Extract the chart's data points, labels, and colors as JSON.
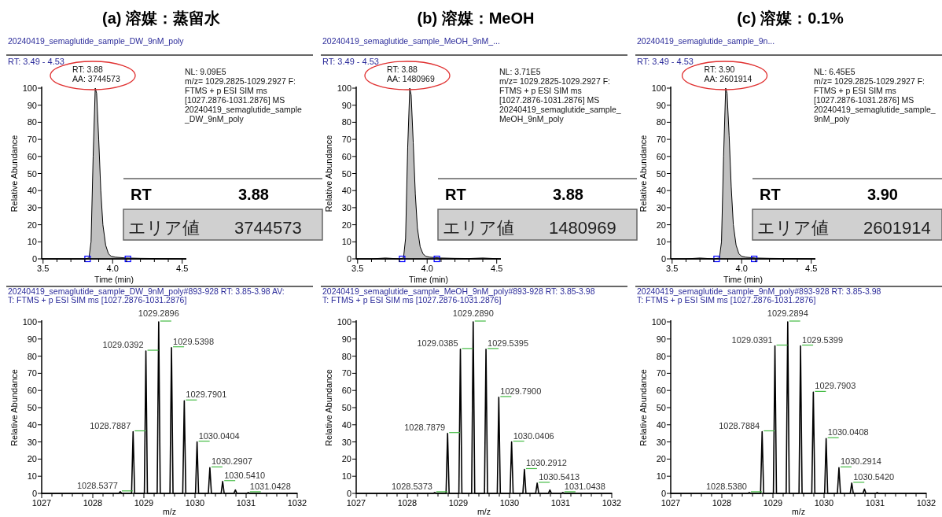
{
  "chart_data": [
    {
      "type": "area",
      "title": "(a) 溶媒：蒸留水",
      "subtitle": "20240419_semaglutide_sample_DW_9nM_poly",
      "xlabel": "Time (min)",
      "ylabel": "Relative Abundance",
      "xlim": [
        3.49,
        4.53
      ],
      "ylim": [
        0,
        100
      ],
      "xticks": [
        3.5,
        {
          "value": 3.6,
          "label": null
        },
        {
          "value": 3.7,
          "label": null
        },
        {
          "value": 3.8,
          "label": null
        },
        {
          "value": 3.9,
          "label": null
        },
        {
          "value": 4,
          "label": "4.0"
        },
        {
          "value": 4.1,
          "label": null
        },
        {
          "value": 4.2,
          "label": null
        },
        {
          "value": 4.3,
          "label": null
        },
        {
          "value": 4.4,
          "label": null
        },
        4.5
      ],
      "yticks": [
        0,
        10,
        20,
        30,
        40,
        50,
        60,
        70,
        80,
        90,
        100
      ],
      "series": [
        {
          "type": "area",
          "color": "#c0c0c0",
          "x": [
            3.49,
            3.6,
            3.7,
            3.8,
            3.83,
            3.845,
            3.86,
            3.875,
            3.885,
            3.9,
            3.915,
            3.93,
            3.95,
            3.97,
            3.99,
            4.02,
            4.1,
            4.2,
            4.3,
            4.4,
            4.53
          ],
          "values": [
            0,
            0,
            0,
            0,
            0.5,
            10,
            60,
            100,
            97,
            70,
            40,
            20,
            8,
            3,
            1.5,
            1,
            0.5,
            0.3,
            0.2,
            0.1,
            0
          ]
        },
        {
          "type": "scatter",
          "marker": "square",
          "color": "#0000ff",
          "x": [
            3.82,
            4.11
          ],
          "values": [
            0,
            0
          ]
        }
      ],
      "annotations": [
        "RT: 3.49 - 4.53",
        "NL: 9.09E5\nm/z= 1029.2825-1029.2927 F:\nFTMS + p ESI SIM ms\n[1027.2876-1031.2876]  MS\n20240419_semaglutide_sample\n_DW_9nM_poly",
        "RT",
        "3.88",
        "エリア値",
        "3744573",
        {
          "text": "RT: 3.88\nAA: 3744573",
          "x": 3.88,
          "y": 100
        }
      ]
    },
    {
      "type": "area",
      "title": "(b) 溶媒：MeOH",
      "subtitle": "20240419_semaglutide_sample_MeOH_9nM_...",
      "xlabel": "Time (min)",
      "ylabel": "Relative Abundance",
      "xlim": [
        3.49,
        4.53
      ],
      "ylim": [
        0,
        100
      ],
      "xticks": [
        3.5,
        {
          "value": 3.6,
          "label": null
        },
        {
          "value": 3.7,
          "label": null
        },
        {
          "value": 3.8,
          "label": null
        },
        {
          "value": 3.9,
          "label": null
        },
        {
          "value": 4,
          "label": "4.0"
        },
        {
          "value": 4.1,
          "label": null
        },
        {
          "value": 4.2,
          "label": null
        },
        {
          "value": 4.3,
          "label": null
        },
        {
          "value": 4.4,
          "label": null
        },
        4.5
      ],
      "yticks": [
        0,
        10,
        20,
        30,
        40,
        50,
        60,
        70,
        80,
        90,
        100
      ],
      "series": [
        {
          "type": "area",
          "color": "#c0c0c0",
          "x": [
            3.49,
            3.6,
            3.7,
            3.8,
            3.83,
            3.845,
            3.86,
            3.875,
            3.885,
            3.9,
            3.915,
            3.93,
            3.95,
            3.97,
            3.99,
            4.02,
            4.1,
            4.2,
            4.3,
            4.4,
            4.53
          ],
          "values": [
            0,
            0,
            0.5,
            0,
            0.5,
            12,
            65,
            100,
            96,
            68,
            38,
            18,
            7,
            3,
            1.5,
            1,
            0.5,
            0.3,
            0.2,
            0.5,
            0
          ]
        },
        {
          "type": "scatter",
          "marker": "square",
          "color": "#0000ff",
          "x": [
            3.82,
            4.07
          ],
          "values": [
            0,
            0
          ]
        }
      ],
      "annotations": [
        "RT: 3.49 - 4.53",
        "NL: 3.71E5\nm/z= 1029.2825-1029.2927 F:\nFTMS + p ESI SIM ms\n[1027.2876-1031.2876]  MS\n20240419_semaglutide_sample_\nMeOH_9nM_poly",
        "RT",
        "3.88",
        "エリア値",
        "1480969",
        {
          "text": "RT: 3.88\nAA: 1480969",
          "x": 3.88,
          "y": 100
        }
      ]
    },
    {
      "type": "area",
      "title": "(c) 溶媒：0.1%",
      "subtitle": "20240419_semaglutide_sample_9n...",
      "xlabel": "Time (min)",
      "ylabel": "Relative Abundance",
      "xlim": [
        3.49,
        4.53
      ],
      "ylim": [
        0,
        100
      ],
      "xticks": [
        3.5,
        {
          "value": 3.6,
          "label": null
        },
        {
          "value": 3.7,
          "label": null
        },
        {
          "value": 3.8,
          "label": null
        },
        {
          "value": 3.9,
          "label": null
        },
        {
          "value": 4,
          "label": "4.0"
        },
        {
          "value": 4.1,
          "label": null
        },
        {
          "value": 4.2,
          "label": null
        },
        {
          "value": 4.3,
          "label": null
        },
        {
          "value": 4.4,
          "label": null
        },
        4.5
      ],
      "yticks": [
        0,
        10,
        20,
        30,
        40,
        50,
        60,
        70,
        80,
        90,
        100
      ],
      "series": [
        {
          "type": "area",
          "color": "#c0c0c0",
          "x": [
            3.49,
            3.6,
            3.7,
            3.8,
            3.84,
            3.855,
            3.87,
            3.885,
            3.895,
            3.91,
            3.925,
            3.94,
            3.96,
            3.98,
            4.0,
            4.03,
            4.1,
            4.2,
            4.3,
            4.4,
            4.53
          ],
          "values": [
            0,
            0,
            0.5,
            0,
            0.5,
            10,
            60,
            100,
            97,
            72,
            42,
            20,
            8,
            3,
            1.5,
            1,
            0.5,
            0.3,
            0.2,
            0.1,
            0
          ]
        },
        {
          "type": "scatter",
          "marker": "square",
          "color": "#0000ff",
          "x": [
            3.82,
            4.09
          ],
          "values": [
            0,
            0
          ]
        }
      ],
      "annotations": [
        "RT: 3.49 - 4.53",
        "NL: 6.45E5\nm/z= 1029.2825-1029.2927 F:\nFTMS + p ESI SIM ms\n[1027.2876-1031.2876]  MS\n20240419_semaglutide_sample_\n9nM_poly",
        "RT",
        "3.90",
        "エリア値",
        "2601914",
        {
          "text": "RT: 3.90\nAA: 2601914",
          "x": 3.9,
          "y": 100
        }
      ]
    },
    {
      "type": "line",
      "subtitle": "20240419_semaglutide_sample_DW_9nM_poly#893-928  RT: 3.85-3.98  AV:\nT: FTMS + p ESI SIM ms [1027.2876-1031.2876]",
      "xlabel": "m/z",
      "ylabel": "Relative Abundance",
      "xlim": [
        1027,
        1032
      ],
      "ylim": [
        0,
        100
      ],
      "xticks": [
        1027,
        {
          "value": 1027.2,
          "label": null
        },
        {
          "value": 1027.4,
          "label": null
        },
        {
          "value": 1027.6,
          "label": null
        },
        {
          "value": 1027.8,
          "label": null
        },
        1028,
        {
          "value": 1028.2,
          "label": null
        },
        {
          "value": 1028.4,
          "label": null
        },
        {
          "value": 1028.6,
          "label": null
        },
        {
          "value": 1028.8,
          "label": null
        },
        1029,
        {
          "value": 1029.2,
          "label": null
        },
        {
          "value": 1029.4,
          "label": null
        },
        {
          "value": 1029.6,
          "label": null
        },
        {
          "value": 1029.8,
          "label": null
        },
        1030,
        {
          "value": 1030.2,
          "label": null
        },
        {
          "value": 1030.4,
          "label": null
        },
        {
          "value": 1030.6,
          "label": null
        },
        {
          "value": 1030.8,
          "label": null
        },
        1031,
        {
          "value": 1031.2,
          "label": null
        },
        {
          "value": 1031.4,
          "label": null
        },
        {
          "value": 1031.6,
          "label": null
        },
        {
          "value": 1031.8,
          "label": null
        },
        1032
      ],
      "yticks": [
        0,
        10,
        20,
        30,
        40,
        50,
        60,
        70,
        80,
        90,
        100
      ],
      "series": [
        {
          "type": "line",
          "color": "#000000",
          "x": [
            1027,
            1028.508,
            1028.5377,
            1028.568,
            1028.759,
            1028.7887,
            1028.819,
            1029.009,
            1029.0392,
            1029.069,
            1029.26,
            1029.2896,
            1029.32,
            1029.51,
            1029.5398,
            1029.57,
            1029.76,
            1029.7901,
            1029.82,
            1030.01,
            1030.0404,
            1030.07,
            1030.261,
            1030.2907,
            1030.321,
            1030.511,
            1030.541,
            1030.571,
            1030.76,
            1030.79,
            1030.82,
            1031.013,
            1031.0428,
            1031.073,
            1032
          ],
          "values": [
            0,
            0,
            1,
            0,
            0,
            36,
            0,
            0,
            83,
            0,
            0,
            100,
            0,
            0,
            85,
            0,
            0,
            54,
            0,
            0,
            30,
            0,
            0,
            15,
            0,
            0,
            7,
            0,
            0,
            2,
            0,
            0,
            0.5,
            0,
            0
          ]
        }
      ],
      "annotations": [
        {
          "text": "1028.5377",
          "x": 1028.5377,
          "y": 1
        },
        {
          "text": "1028.7887",
          "x": 1028.7887,
          "y": 36
        },
        {
          "text": "1029.0392",
          "x": 1029.0392,
          "y": 83
        },
        {
          "text": "1029.2896",
          "x": 1029.2896,
          "y": 100
        },
        {
          "text": "1029.5398",
          "x": 1029.5398,
          "y": 85
        },
        {
          "text": "1029.7901",
          "x": 1029.7901,
          "y": 54
        },
        {
          "text": "1030.0404",
          "x": 1030.0404,
          "y": 30
        },
        {
          "text": "1030.2907",
          "x": 1030.2907,
          "y": 15
        },
        {
          "text": "1030.5410",
          "x": 1030.541,
          "y": 7
        },
        {
          "text": "1031.0428",
          "x": 1031.0428,
          "y": 0.5
        }
      ]
    },
    {
      "type": "line",
      "subtitle": "20240419_semaglutide_sample_MeOH_9nM_poly#893-928  RT: 3.85-3.98\nT: FTMS + p ESI SIM ms [1027.2876-1031.2876]",
      "xlabel": "m/z",
      "ylabel": "Relative Abundance",
      "xlim": [
        1027,
        1032
      ],
      "ylim": [
        0,
        100
      ],
      "xticks": [
        1027,
        {
          "value": 1027.2,
          "label": null
        },
        {
          "value": 1027.4,
          "label": null
        },
        {
          "value": 1027.6,
          "label": null
        },
        {
          "value": 1027.8,
          "label": null
        },
        1028,
        {
          "value": 1028.2,
          "label": null
        },
        {
          "value": 1028.4,
          "label": null
        },
        {
          "value": 1028.6,
          "label": null
        },
        {
          "value": 1028.8,
          "label": null
        },
        1029,
        {
          "value": 1029.2,
          "label": null
        },
        {
          "value": 1029.4,
          "label": null
        },
        {
          "value": 1029.6,
          "label": null
        },
        {
          "value": 1029.8,
          "label": null
        },
        1030,
        {
          "value": 1030.2,
          "label": null
        },
        {
          "value": 1030.4,
          "label": null
        },
        {
          "value": 1030.6,
          "label": null
        },
        {
          "value": 1030.8,
          "label": null
        },
        1031,
        {
          "value": 1031.2,
          "label": null
        },
        {
          "value": 1031.4,
          "label": null
        },
        {
          "value": 1031.6,
          "label": null
        },
        {
          "value": 1031.8,
          "label": null
        },
        1032
      ],
      "yticks": [
        0,
        10,
        20,
        30,
        40,
        50,
        60,
        70,
        80,
        90,
        100
      ],
      "series": [
        {
          "type": "line",
          "color": "#000000",
          "x": [
            1027,
            1028.507,
            1028.5373,
            1028.567,
            1028.758,
            1028.7879,
            1028.818,
            1029.009,
            1029.0385,
            1029.068,
            1029.259,
            1029.289,
            1029.319,
            1029.51,
            1029.5395,
            1029.57,
            1029.76,
            1029.79,
            1029.82,
            1030.011,
            1030.0406,
            1030.071,
            1030.261,
            1030.2912,
            1030.321,
            1030.511,
            1030.5413,
            1030.571,
            1030.76,
            1030.79,
            1030.82,
            1031.014,
            1031.0438,
            1031.074,
            1032
          ],
          "values": [
            0,
            0,
            0.5,
            0,
            0,
            35,
            0,
            0,
            84,
            0,
            0,
            100,
            0,
            0,
            84,
            0,
            0,
            56,
            0,
            0,
            30,
            0,
            0,
            14,
            0,
            0,
            6,
            0,
            0,
            2,
            0,
            0,
            0.5,
            0,
            0
          ]
        }
      ],
      "annotations": [
        {
          "text": "1028.5373",
          "x": 1028.5373,
          "y": 0.5
        },
        {
          "text": "1028.7879",
          "x": 1028.7879,
          "y": 35
        },
        {
          "text": "1029.0385",
          "x": 1029.0385,
          "y": 84
        },
        {
          "text": "1029.2890",
          "x": 1029.289,
          "y": 100
        },
        {
          "text": "1029.5395",
          "x": 1029.5395,
          "y": 84
        },
        {
          "text": "1029.7900",
          "x": 1029.79,
          "y": 56
        },
        {
          "text": "1030.0406",
          "x": 1030.0406,
          "y": 30
        },
        {
          "text": "1030.2912",
          "x": 1030.2912,
          "y": 14
        },
        {
          "text": "1030.5413",
          "x": 1030.5413,
          "y": 6
        },
        {
          "text": "1031.0438",
          "x": 1031.0438,
          "y": 0.5
        }
      ]
    },
    {
      "type": "line",
      "subtitle": "20240419_semaglutide_sample_9nM_poly#893-928  RT: 3.85-3.98\nT: FTMS + p ESI SIM ms [1027.2876-1031.2876]",
      "xlabel": "m/z",
      "ylabel": "Relative Abundance",
      "xlim": [
        1027,
        1032
      ],
      "ylim": [
        0,
        100
      ],
      "xticks": [
        1027,
        {
          "value": 1027.2,
          "label": null
        },
        {
          "value": 1027.4,
          "label": null
        },
        {
          "value": 1027.6,
          "label": null
        },
        {
          "value": 1027.8,
          "label": null
        },
        1028,
        {
          "value": 1028.2,
          "label": null
        },
        {
          "value": 1028.4,
          "label": null
        },
        {
          "value": 1028.6,
          "label": null
        },
        {
          "value": 1028.8,
          "label": null
        },
        1029,
        {
          "value": 1029.2,
          "label": null
        },
        {
          "value": 1029.4,
          "label": null
        },
        {
          "value": 1029.6,
          "label": null
        },
        {
          "value": 1029.8,
          "label": null
        },
        1030,
        {
          "value": 1030.2,
          "label": null
        },
        {
          "value": 1030.4,
          "label": null
        },
        {
          "value": 1030.6,
          "label": null
        },
        {
          "value": 1030.8,
          "label": null
        },
        1031,
        {
          "value": 1031.2,
          "label": null
        },
        {
          "value": 1031.4,
          "label": null
        },
        {
          "value": 1031.6,
          "label": null
        },
        {
          "value": 1031.8,
          "label": null
        },
        1032
      ],
      "yticks": [
        0,
        10,
        20,
        30,
        40,
        50,
        60,
        70,
        80,
        90,
        100
      ],
      "series": [
        {
          "type": "line",
          "color": "#000000",
          "x": [
            1027,
            1028.508,
            1028.538,
            1028.568,
            1028.758,
            1028.7884,
            1028.818,
            1029.009,
            1029.0391,
            1029.069,
            1029.259,
            1029.2894,
            1029.319,
            1029.51,
            1029.5399,
            1029.57,
            1029.76,
            1029.7903,
            1029.82,
            1030.011,
            1030.0408,
            1030.071,
            1030.261,
            1030.2914,
            1030.321,
            1030.512,
            1030.542,
            1030.572,
            1030.76,
            1030.79,
            1030.82,
            1031.01,
            1031.04,
            1031.07,
            1032
          ],
          "values": [
            0,
            0,
            0.5,
            0,
            0,
            36,
            0,
            0,
            86,
            0,
            0,
            100,
            0,
            0,
            86,
            0,
            0,
            59,
            0,
            0,
            32,
            0,
            0,
            15,
            0,
            0,
            6,
            0,
            0,
            2.5,
            0,
            0,
            0.5,
            0,
            0
          ]
        }
      ],
      "annotations": [
        {
          "text": "1028.5380",
          "x": 1028.538,
          "y": 0.5
        },
        {
          "text": "1028.7884",
          "x": 1028.7884,
          "y": 36
        },
        {
          "text": "1029.0391",
          "x": 1029.0391,
          "y": 86
        },
        {
          "text": "1029.2894",
          "x": 1029.2894,
          "y": 100
        },
        {
          "text": "1029.5399",
          "x": 1029.5399,
          "y": 86
        },
        {
          "text": "1029.7903",
          "x": 1029.7903,
          "y": 59
        },
        {
          "text": "1030.0408",
          "x": 1030.0408,
          "y": 32
        },
        {
          "text": "1030.2914",
          "x": 1030.2914,
          "y": 15
        },
        {
          "text": "1030.5420",
          "x": 1030.542,
          "y": 6
        }
      ]
    }
  ]
}
